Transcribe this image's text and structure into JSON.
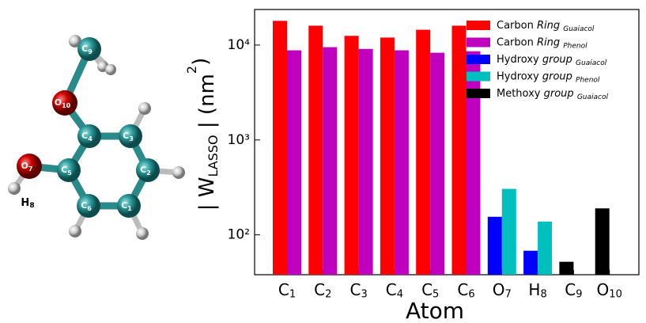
{
  "molecule": {
    "atoms": [
      "C9",
      "O10",
      "C4",
      "C3",
      "C2",
      "C1",
      "C6",
      "C5",
      "O7",
      "H8"
    ]
  },
  "chart_data": {
    "type": "bar",
    "x_label": "Atom",
    "y_label": [
      "| W",
      "LASSO",
      " | (nm",
      "2",
      ")"
    ],
    "categories": [
      "C1",
      "C2",
      "C3",
      "C4",
      "C5",
      "C6",
      "O7",
      "H8",
      "C9",
      "O10"
    ],
    "series": [
      {
        "name": "Carbon Ring Guaiacol",
        "color": "#ff0000",
        "values": [
          18000,
          16000,
          12500,
          12000,
          14500,
          16000,
          null,
          null,
          null,
          null
        ]
      },
      {
        "name": "Carbon Ring Phenol",
        "color": "#bf00bf",
        "values": [
          8800,
          9500,
          9100,
          8800,
          8300,
          8600,
          null,
          null,
          null,
          null
        ]
      },
      {
        "name": "Hydroxy group Guaiacol",
        "color": "#0000ff",
        "values": [
          null,
          null,
          null,
          null,
          null,
          null,
          155,
          68,
          null,
          null
        ]
      },
      {
        "name": "Hydroxy group Phenol",
        "color": "#00bfbf",
        "values": [
          null,
          null,
          null,
          null,
          null,
          null,
          305,
          138,
          null,
          null
        ]
      },
      {
        "name": "Methoxy group Guaiacol",
        "color": "#000000",
        "values": [
          null,
          null,
          null,
          null,
          null,
          null,
          null,
          null,
          52,
          190
        ]
      }
    ],
    "ylim": [
      38,
      23700
    ],
    "yticks": [
      {
        "value": 100,
        "label": "10²"
      },
      {
        "value": 1000,
        "label": "10³"
      },
      {
        "value": 10000,
        "label": "10⁴"
      }
    ],
    "log_scale": true,
    "legend": "upper right"
  }
}
